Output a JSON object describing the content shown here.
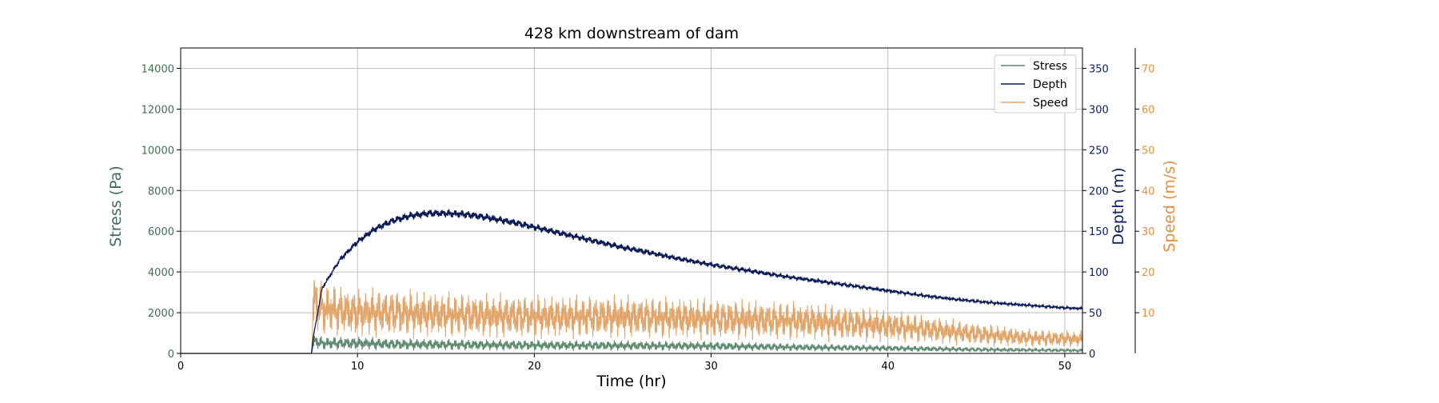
{
  "chart_data": {
    "type": "line",
    "title": "428 km downstream of dam",
    "xlabel": "Time (hr)",
    "xlim": [
      0,
      51
    ],
    "xticks": [
      0,
      10,
      20,
      30,
      40,
      50
    ],
    "grid": true,
    "legend_position": "top-right",
    "axes": [
      {
        "key": "stress",
        "label": "Stress (Pa)",
        "side": "left",
        "color": "#426f52",
        "ylim": [
          0,
          15000
        ],
        "ticks": [
          0,
          2000,
          4000,
          6000,
          8000,
          10000,
          12000,
          14000
        ]
      },
      {
        "key": "depth",
        "label": "Depth (m)",
        "side": "right",
        "color": "#0d1f5c",
        "ylim": [
          0,
          375
        ],
        "ticks": [
          0,
          50,
          100,
          150,
          200,
          250,
          300,
          350
        ]
      },
      {
        "key": "speed",
        "label": "Speed (m/s)",
        "side": "right-outer",
        "color": "#e0913e",
        "ylim": [
          0,
          75
        ],
        "ticks": [
          10,
          20,
          30,
          40,
          50,
          60,
          70
        ]
      }
    ],
    "series": [
      {
        "name": "Stress",
        "axis": "stress",
        "color": "#5e8a72",
        "noise": 0.55,
        "x": [
          0,
          7.4,
          7.5,
          8,
          10,
          12,
          15,
          20,
          25,
          30,
          35,
          40,
          45,
          50,
          51
        ],
        "y": [
          0,
          0,
          600,
          500,
          500,
          450,
          430,
          400,
          380,
          360,
          300,
          250,
          190,
          150,
          140
        ]
      },
      {
        "name": "Depth",
        "axis": "depth",
        "color": "#0a1a55",
        "noise": 0.025,
        "x": [
          0,
          7.4,
          7.5,
          8,
          9,
          10,
          11,
          12,
          13,
          14,
          15,
          16,
          17,
          18,
          19,
          20,
          21,
          22,
          23,
          24,
          25,
          26,
          28,
          30,
          32,
          34,
          36,
          38,
          40,
          42,
          44,
          46,
          48,
          50,
          51
        ],
        "y": [
          0,
          0,
          20,
          80,
          115,
          137,
          153,
          163,
          169,
          172,
          172,
          171,
          168,
          164,
          160,
          155,
          150,
          145,
          140,
          135,
          130,
          126,
          117,
          109,
          102,
          95,
          89,
          83,
          77,
          71,
          66,
          62,
          59,
          56,
          55
        ]
      },
      {
        "name": "Speed",
        "axis": "speed",
        "color": "#e1a56a",
        "noise": 0.5,
        "x": [
          0,
          7.4,
          7.5,
          8,
          10,
          12,
          15,
          20,
          25,
          30,
          35,
          38,
          40,
          42,
          45,
          48,
          51
        ],
        "y": [
          0,
          0,
          13,
          11,
          10,
          10,
          9.5,
          9,
          9,
          8.5,
          8,
          7.3,
          6.8,
          6,
          4.8,
          3.8,
          3.5
        ]
      }
    ]
  }
}
